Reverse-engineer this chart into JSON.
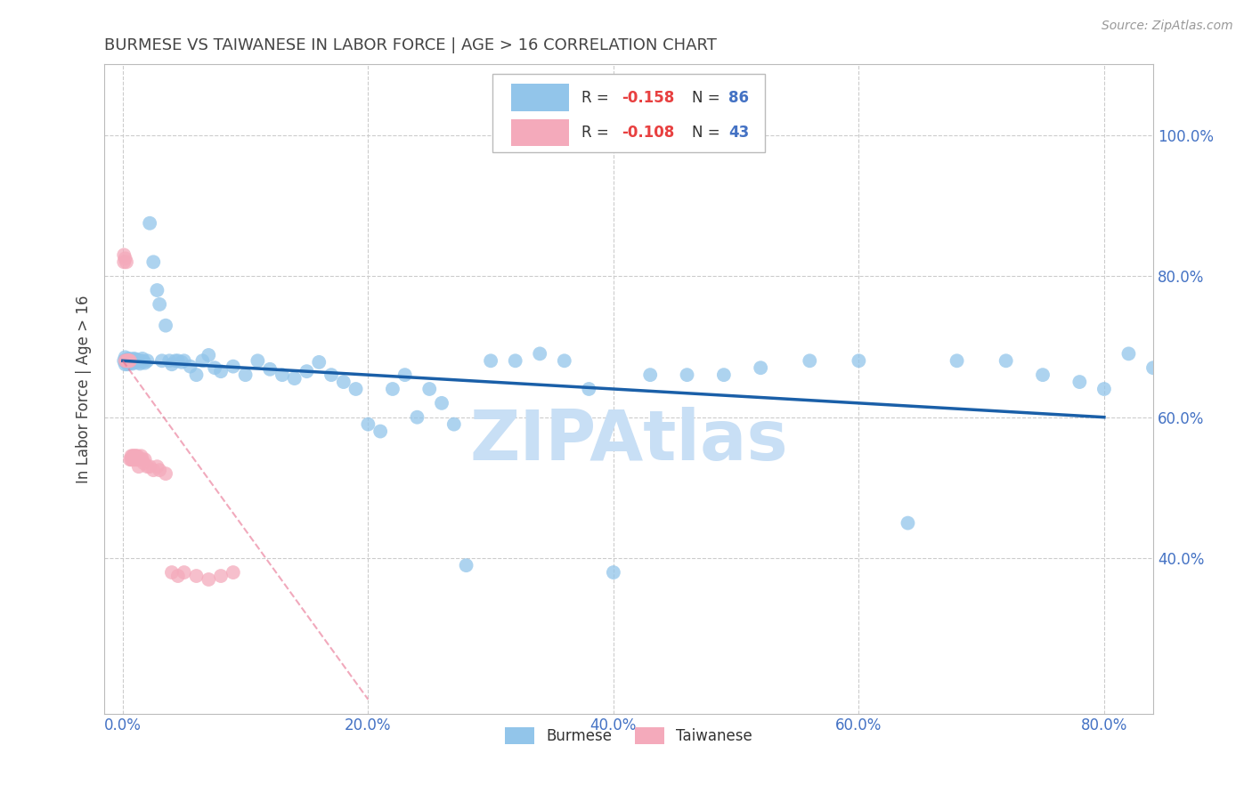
{
  "title": "BURMESE VS TAIWANESE IN LABOR FORCE | AGE > 16 CORRELATION CHART",
  "source": "Source: ZipAtlas.com",
  "ylabel": "In Labor Force | Age > 16",
  "x_tick_labels": [
    "0.0%",
    "",
    "20.0%",
    "",
    "40.0%",
    "",
    "60.0%",
    "",
    "80.0%"
  ],
  "x_tick_values": [
    0.0,
    0.1,
    0.2,
    0.3,
    0.4,
    0.5,
    0.6,
    0.7,
    0.8
  ],
  "y_tick_labels": [
    "100.0%",
    "80.0%",
    "60.0%",
    "40.0%"
  ],
  "y_tick_values": [
    1.0,
    0.8,
    0.6,
    0.4
  ],
  "xlim": [
    -0.015,
    0.84
  ],
  "ylim": [
    0.18,
    1.1
  ],
  "burmese_color": "#92C5EA",
  "burmese_line_color": "#1A5FA8",
  "taiwanese_color": "#F4AABB",
  "taiwanese_line_color": "#E87090",
  "watermark": "ZIPAtlas",
  "watermark_color": "#C8DFF5",
  "background_color": "#FFFFFF",
  "grid_color": "#CCCCCC",
  "title_color": "#444444",
  "axis_label_color": "#444444",
  "tick_label_color": "#4472C4",
  "legend_R_color": "#E84040",
  "legend_N_color": "#4472C4",
  "burmese_line_x0": 0.0,
  "burmese_line_y0": 0.68,
  "burmese_line_x1": 0.8,
  "burmese_line_y1": 0.6,
  "taiwanese_line_x0": 0.0,
  "taiwanese_line_y0": 0.68,
  "taiwanese_line_x1": 0.2,
  "taiwanese_line_y1": 0.2,
  "burmese_x": [
    0.001,
    0.002,
    0.002,
    0.003,
    0.003,
    0.004,
    0.004,
    0.005,
    0.005,
    0.006,
    0.006,
    0.007,
    0.007,
    0.008,
    0.008,
    0.009,
    0.009,
    0.01,
    0.01,
    0.011,
    0.012,
    0.013,
    0.014,
    0.015,
    0.016,
    0.017,
    0.018,
    0.02,
    0.022,
    0.025,
    0.028,
    0.03,
    0.032,
    0.035,
    0.038,
    0.04,
    0.043,
    0.045,
    0.048,
    0.05,
    0.055,
    0.06,
    0.065,
    0.07,
    0.075,
    0.08,
    0.09,
    0.1,
    0.11,
    0.12,
    0.13,
    0.14,
    0.15,
    0.16,
    0.17,
    0.18,
    0.19,
    0.2,
    0.21,
    0.22,
    0.23,
    0.24,
    0.25,
    0.26,
    0.27,
    0.28,
    0.3,
    0.32,
    0.34,
    0.36,
    0.38,
    0.4,
    0.43,
    0.46,
    0.49,
    0.52,
    0.56,
    0.6,
    0.64,
    0.68,
    0.72,
    0.75,
    0.78,
    0.8,
    0.82,
    0.84
  ],
  "burmese_y": [
    0.68,
    0.675,
    0.685,
    0.678,
    0.682,
    0.68,
    0.675,
    0.678,
    0.683,
    0.681,
    0.679,
    0.677,
    0.682,
    0.68,
    0.676,
    0.679,
    0.683,
    0.68,
    0.678,
    0.682,
    0.68,
    0.678,
    0.676,
    0.68,
    0.683,
    0.679,
    0.677,
    0.68,
    0.875,
    0.82,
    0.78,
    0.76,
    0.68,
    0.73,
    0.68,
    0.675,
    0.68,
    0.68,
    0.678,
    0.68,
    0.672,
    0.66,
    0.68,
    0.688,
    0.67,
    0.665,
    0.672,
    0.66,
    0.68,
    0.668,
    0.66,
    0.655,
    0.665,
    0.678,
    0.66,
    0.65,
    0.64,
    0.59,
    0.58,
    0.64,
    0.66,
    0.6,
    0.64,
    0.62,
    0.59,
    0.39,
    0.68,
    0.68,
    0.69,
    0.68,
    0.64,
    0.38,
    0.66,
    0.66,
    0.66,
    0.67,
    0.68,
    0.68,
    0.45,
    0.68,
    0.68,
    0.66,
    0.65,
    0.64,
    0.69,
    0.67
  ],
  "taiwanese_x": [
    0.001,
    0.001,
    0.002,
    0.002,
    0.003,
    0.003,
    0.004,
    0.004,
    0.005,
    0.005,
    0.006,
    0.006,
    0.007,
    0.007,
    0.008,
    0.008,
    0.009,
    0.009,
    0.01,
    0.01,
    0.011,
    0.011,
    0.012,
    0.012,
    0.013,
    0.014,
    0.015,
    0.016,
    0.017,
    0.018,
    0.02,
    0.022,
    0.025,
    0.028,
    0.03,
    0.035,
    0.04,
    0.045,
    0.05,
    0.06,
    0.07,
    0.08,
    0.09
  ],
  "taiwanese_y": [
    0.82,
    0.83,
    0.68,
    0.825,
    0.68,
    0.82,
    0.68,
    0.68,
    0.68,
    0.68,
    0.54,
    0.68,
    0.54,
    0.545,
    0.545,
    0.54,
    0.54,
    0.545,
    0.54,
    0.545,
    0.54,
    0.545,
    0.54,
    0.545,
    0.53,
    0.54,
    0.545,
    0.54,
    0.535,
    0.54,
    0.53,
    0.53,
    0.525,
    0.53,
    0.525,
    0.52,
    0.38,
    0.375,
    0.38,
    0.375,
    0.37,
    0.375,
    0.38
  ]
}
